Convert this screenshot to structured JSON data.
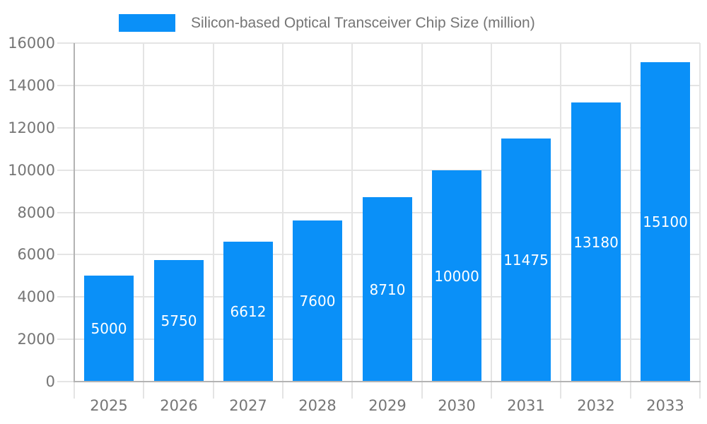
{
  "chart_data": {
    "type": "bar",
    "title": "Silicon-based Optical Transceiver Chip Size (million)",
    "categories": [
      "2025",
      "2026",
      "2027",
      "2028",
      "2029",
      "2030",
      "2031",
      "2032",
      "2033"
    ],
    "values": [
      5000,
      5750,
      6612,
      7600,
      8710,
      10000,
      11475,
      13180,
      15100
    ],
    "value_labels": [
      "5000",
      "5750",
      "6612",
      "7600",
      "8710",
      "10000",
      "11475",
      "13180",
      "15100"
    ],
    "xlabel": "",
    "ylabel": "",
    "ylim": [
      0,
      16000
    ],
    "ytick_step": 2000,
    "ytick_labels": [
      "0",
      "2000",
      "4000",
      "6000",
      "8000",
      "10000",
      "12000",
      "14000",
      "16000"
    ],
    "grid": true,
    "legend_position": "top",
    "colors": {
      "bar": "#0a90f8",
      "grid": "#e4e4e4",
      "axis": "#b3b3b3",
      "tick_text": "#757575",
      "legend_text": "#757575",
      "value_text": "#ffffff",
      "background": "#ffffff"
    }
  }
}
